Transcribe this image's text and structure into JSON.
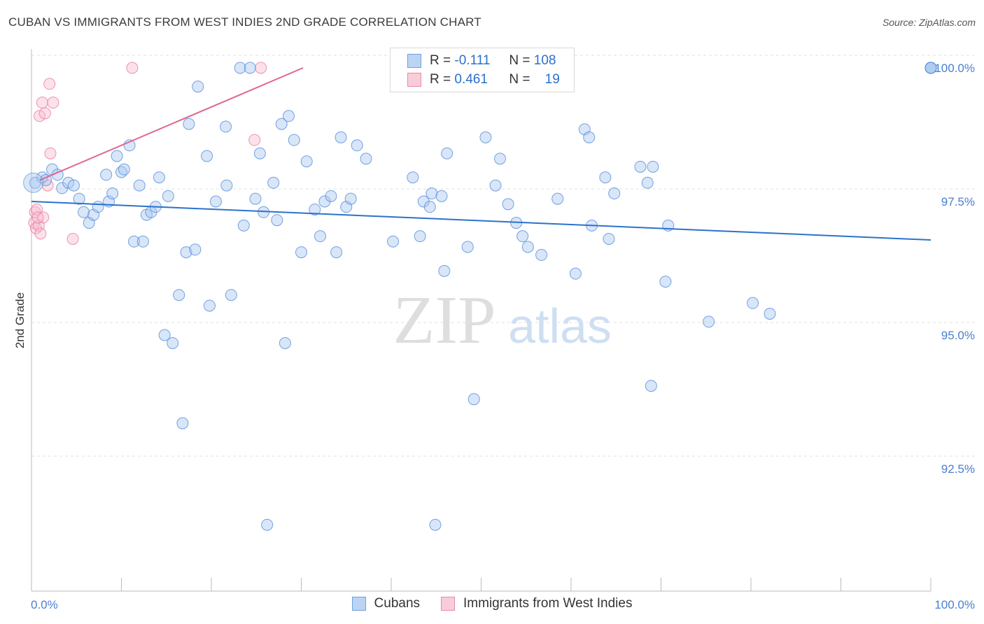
{
  "header": {
    "title": "CUBAN VS IMMIGRANTS FROM WEST INDIES 2ND GRADE CORRELATION CHART",
    "source": "Source: ZipAtlas.com"
  },
  "watermark": {
    "zip": "ZIP",
    "atlas": "atlas"
  },
  "legend_top": {
    "rows": [
      {
        "r_label": "R =",
        "r_value": "-0.111",
        "n_label": "N =",
        "n_value": "108",
        "color": "#a9c8f0",
        "border": "#6f9fde"
      },
      {
        "r_label": "R =",
        "r_value": "0.461",
        "n_label": "N =",
        "n_value": "19",
        "color": "#f7bfd0",
        "border": "#e88aa8"
      }
    ]
  },
  "legend_bottom": {
    "items": [
      {
        "label": "Cubans",
        "color": "#a9c8f0",
        "border": "#6f9fde"
      },
      {
        "label": "Immigrants from West Indies",
        "color": "#f7bfd0",
        "border": "#e88aa8"
      }
    ]
  },
  "chart_data": {
    "type": "scatter",
    "ylabel": "2nd Grade",
    "xlim": [
      0,
      100
    ],
    "ylim": [
      90.2,
      100.4
    ],
    "x_tick_labels": [
      "0.0%",
      "100.0%"
    ],
    "y_ticks": [
      {
        "value": 100.0,
        "label": "100.0%"
      },
      {
        "value": 97.5,
        "label": "97.5%"
      },
      {
        "value": 95.0,
        "label": "95.0%"
      },
      {
        "value": 92.5,
        "label": "92.5%"
      }
    ],
    "grid": true,
    "colors": {
      "blue": "#4a86d8",
      "pink": "#e8729a",
      "blue_line": "#2c72cc",
      "pink_line": "#e0668e"
    },
    "series": [
      {
        "name": "Cubans",
        "trend": {
          "x0": 0,
          "y0": 97.5,
          "x1": 100,
          "y1": 96.78
        },
        "points": [
          [
            0.4,
            97.85
          ],
          [
            1.2,
            97.95
          ],
          [
            1.6,
            97.9
          ],
          [
            2.3,
            98.1
          ],
          [
            2.9,
            98.0
          ],
          [
            3.4,
            97.75
          ],
          [
            4.1,
            97.85
          ],
          [
            4.7,
            97.8
          ],
          [
            5.3,
            97.55
          ],
          [
            5.8,
            97.3
          ],
          [
            6.4,
            97.1
          ],
          [
            6.9,
            97.25
          ],
          [
            7.4,
            97.4
          ],
          [
            8.3,
            98.0
          ],
          [
            8.6,
            97.5
          ],
          [
            9.0,
            97.65
          ],
          [
            9.5,
            98.35
          ],
          [
            10.0,
            98.05
          ],
          [
            10.3,
            98.1
          ],
          [
            10.9,
            98.55
          ],
          [
            11.4,
            96.75
          ],
          [
            12.0,
            97.8
          ],
          [
            12.4,
            96.75
          ],
          [
            12.8,
            97.25
          ],
          [
            13.3,
            97.3
          ],
          [
            13.8,
            97.4
          ],
          [
            14.2,
            97.95
          ],
          [
            14.8,
            95.0
          ],
          [
            15.2,
            97.6
          ],
          [
            15.7,
            94.85
          ],
          [
            16.4,
            95.75
          ],
          [
            16.8,
            93.35
          ],
          [
            17.2,
            96.55
          ],
          [
            17.5,
            98.95
          ],
          [
            18.2,
            96.6
          ],
          [
            18.5,
            99.65
          ],
          [
            19.5,
            98.35
          ],
          [
            19.8,
            95.55
          ],
          [
            20.5,
            97.5
          ],
          [
            21.6,
            98.9
          ],
          [
            21.7,
            97.8
          ],
          [
            22.2,
            95.75
          ],
          [
            23.2,
            100.0
          ],
          [
            23.6,
            97.05
          ],
          [
            24.3,
            100.0
          ],
          [
            24.9,
            97.55
          ],
          [
            25.4,
            98.4
          ],
          [
            25.8,
            97.3
          ],
          [
            26.2,
            91.45
          ],
          [
            26.9,
            97.85
          ],
          [
            27.3,
            97.15
          ],
          [
            27.8,
            98.95
          ],
          [
            28.2,
            94.85
          ],
          [
            28.6,
            99.1
          ],
          [
            29.2,
            98.65
          ],
          [
            30.0,
            96.55
          ],
          [
            30.6,
            98.25
          ],
          [
            31.5,
            97.35
          ],
          [
            32.1,
            96.85
          ],
          [
            32.6,
            97.5
          ],
          [
            33.3,
            97.6
          ],
          [
            33.9,
            96.55
          ],
          [
            34.4,
            98.7
          ],
          [
            35.0,
            97.4
          ],
          [
            35.5,
            97.55
          ],
          [
            36.2,
            98.55
          ],
          [
            37.2,
            98.3
          ],
          [
            40.2,
            96.75
          ],
          [
            42.4,
            97.95
          ],
          [
            43.2,
            96.85
          ],
          [
            43.6,
            97.5
          ],
          [
            44.3,
            97.4
          ],
          [
            44.5,
            97.65
          ],
          [
            44.9,
            91.45
          ],
          [
            45.6,
            97.6
          ],
          [
            45.9,
            96.2
          ],
          [
            46.2,
            98.4
          ],
          [
            48.5,
            96.65
          ],
          [
            49.2,
            93.8
          ],
          [
            50.5,
            98.7
          ],
          [
            51.6,
            97.8
          ],
          [
            52.1,
            98.3
          ],
          [
            53.0,
            97.45
          ],
          [
            53.9,
            97.1
          ],
          [
            54.6,
            96.85
          ],
          [
            55.2,
            96.65
          ],
          [
            56.7,
            96.5
          ],
          [
            58.5,
            97.55
          ],
          [
            60.5,
            96.15
          ],
          [
            61.5,
            98.85
          ],
          [
            62.0,
            98.7
          ],
          [
            62.3,
            97.05
          ],
          [
            63.8,
            97.95
          ],
          [
            64.2,
            96.8
          ],
          [
            64.8,
            97.65
          ],
          [
            67.7,
            98.15
          ],
          [
            68.5,
            97.85
          ],
          [
            68.9,
            94.05
          ],
          [
            69.1,
            98.15
          ],
          [
            70.5,
            96.0
          ],
          [
            70.8,
            97.05
          ],
          [
            75.3,
            95.25
          ],
          [
            80.2,
            95.6
          ],
          [
            82.1,
            95.4
          ],
          [
            100.0,
            100.0
          ],
          [
            100.0,
            100.0
          ],
          [
            100.0,
            100.0
          ],
          [
            100.0,
            100.0
          ]
        ]
      },
      {
        "name": "Immigrants from West Indies",
        "trend": {
          "x0": 0,
          "y0": 97.9,
          "x1": 30.2,
          "y1": 100.0
        },
        "points": [
          [
            0.3,
            97.1
          ],
          [
            0.4,
            97.3
          ],
          [
            0.5,
            97.0
          ],
          [
            0.6,
            97.35
          ],
          [
            0.8,
            97.05
          ],
          [
            0.9,
            99.1
          ],
          [
            1.0,
            96.9
          ],
          [
            1.2,
            99.35
          ],
          [
            1.3,
            97.2
          ],
          [
            1.5,
            99.15
          ],
          [
            1.8,
            97.8
          ],
          [
            2.0,
            99.7
          ],
          [
            2.1,
            98.4
          ],
          [
            2.4,
            99.35
          ],
          [
            4.6,
            96.8
          ],
          [
            11.2,
            100.0
          ],
          [
            24.8,
            98.65
          ],
          [
            25.5,
            100.0
          ],
          [
            0.7,
            97.2
          ]
        ]
      }
    ]
  }
}
